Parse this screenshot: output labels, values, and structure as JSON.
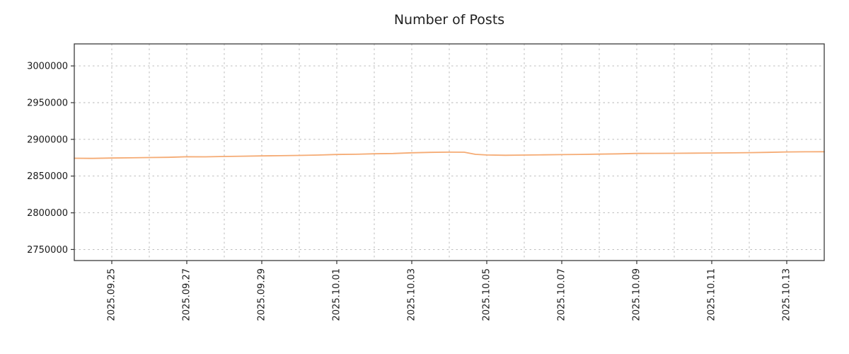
{
  "page": {
    "background": "#ffffff"
  },
  "chart_data": {
    "type": "line",
    "title": "Number of Posts",
    "xlabel": "",
    "ylabel": "",
    "grid": true,
    "grid_style": "dashed",
    "legend_position": "none",
    "line_color": "#f5ab74",
    "x_axis_note": "x values are days since 2025-09-24; date labels formatted YYYY.MM.DD and rotated 90 degrees",
    "xlim": [
      0,
      20
    ],
    "ylim": [
      2735000,
      3030000
    ],
    "yticks": [
      2750000,
      2800000,
      2850000,
      2900000,
      2950000,
      3000000
    ],
    "x_gridlines": [
      1,
      2,
      3,
      4,
      5,
      6,
      7,
      8,
      9,
      10,
      11,
      12,
      13,
      14,
      15,
      16,
      17,
      18,
      19
    ],
    "xticks": [
      {
        "x": 1,
        "label": "2025.09.25"
      },
      {
        "x": 3,
        "label": "2025.09.27"
      },
      {
        "x": 5,
        "label": "2025.09.29"
      },
      {
        "x": 7,
        "label": "2025.10.01"
      },
      {
        "x": 9,
        "label": "2025.10.03"
      },
      {
        "x": 11,
        "label": "2025.10.05"
      },
      {
        "x": 13,
        "label": "2025.10.07"
      },
      {
        "x": 15,
        "label": "2025.10.09"
      },
      {
        "x": 17,
        "label": "2025.10.11"
      },
      {
        "x": 19,
        "label": "2025.10.13"
      }
    ],
    "series": [
      {
        "name": "Number of Posts",
        "points": [
          [
            0,
            2874300
          ],
          [
            0.5,
            2874100
          ],
          [
            1,
            2874600
          ],
          [
            1.5,
            2874900
          ],
          [
            2,
            2875300
          ],
          [
            2.5,
            2875600
          ],
          [
            3,
            2876300
          ],
          [
            3.5,
            2876200
          ],
          [
            4,
            2876700
          ],
          [
            4.5,
            2877100
          ],
          [
            5,
            2877500
          ],
          [
            5.5,
            2877800
          ],
          [
            6,
            2878200
          ],
          [
            6.5,
            2878600
          ],
          [
            7,
            2879400
          ],
          [
            7.5,
            2879700
          ],
          [
            8,
            2880400
          ],
          [
            8.5,
            2880800
          ],
          [
            9,
            2881700
          ],
          [
            9.5,
            2882300
          ],
          [
            10,
            2882600
          ],
          [
            10.4,
            2882500
          ],
          [
            10.7,
            2879600
          ],
          [
            11,
            2878700
          ],
          [
            11.5,
            2878400
          ],
          [
            12,
            2878600
          ],
          [
            12.5,
            2878900
          ],
          [
            13,
            2879200
          ],
          [
            13.5,
            2879500
          ],
          [
            14,
            2879900
          ],
          [
            14.5,
            2880300
          ],
          [
            15,
            2880900
          ],
          [
            15.5,
            2881000
          ],
          [
            16,
            2881100
          ],
          [
            16.5,
            2881250
          ],
          [
            17,
            2881450
          ],
          [
            17.5,
            2881650
          ],
          [
            18,
            2881950
          ],
          [
            18.5,
            2882350
          ],
          [
            19,
            2882900
          ],
          [
            19.5,
            2883100
          ],
          [
            20,
            2883200
          ]
        ]
      }
    ]
  }
}
